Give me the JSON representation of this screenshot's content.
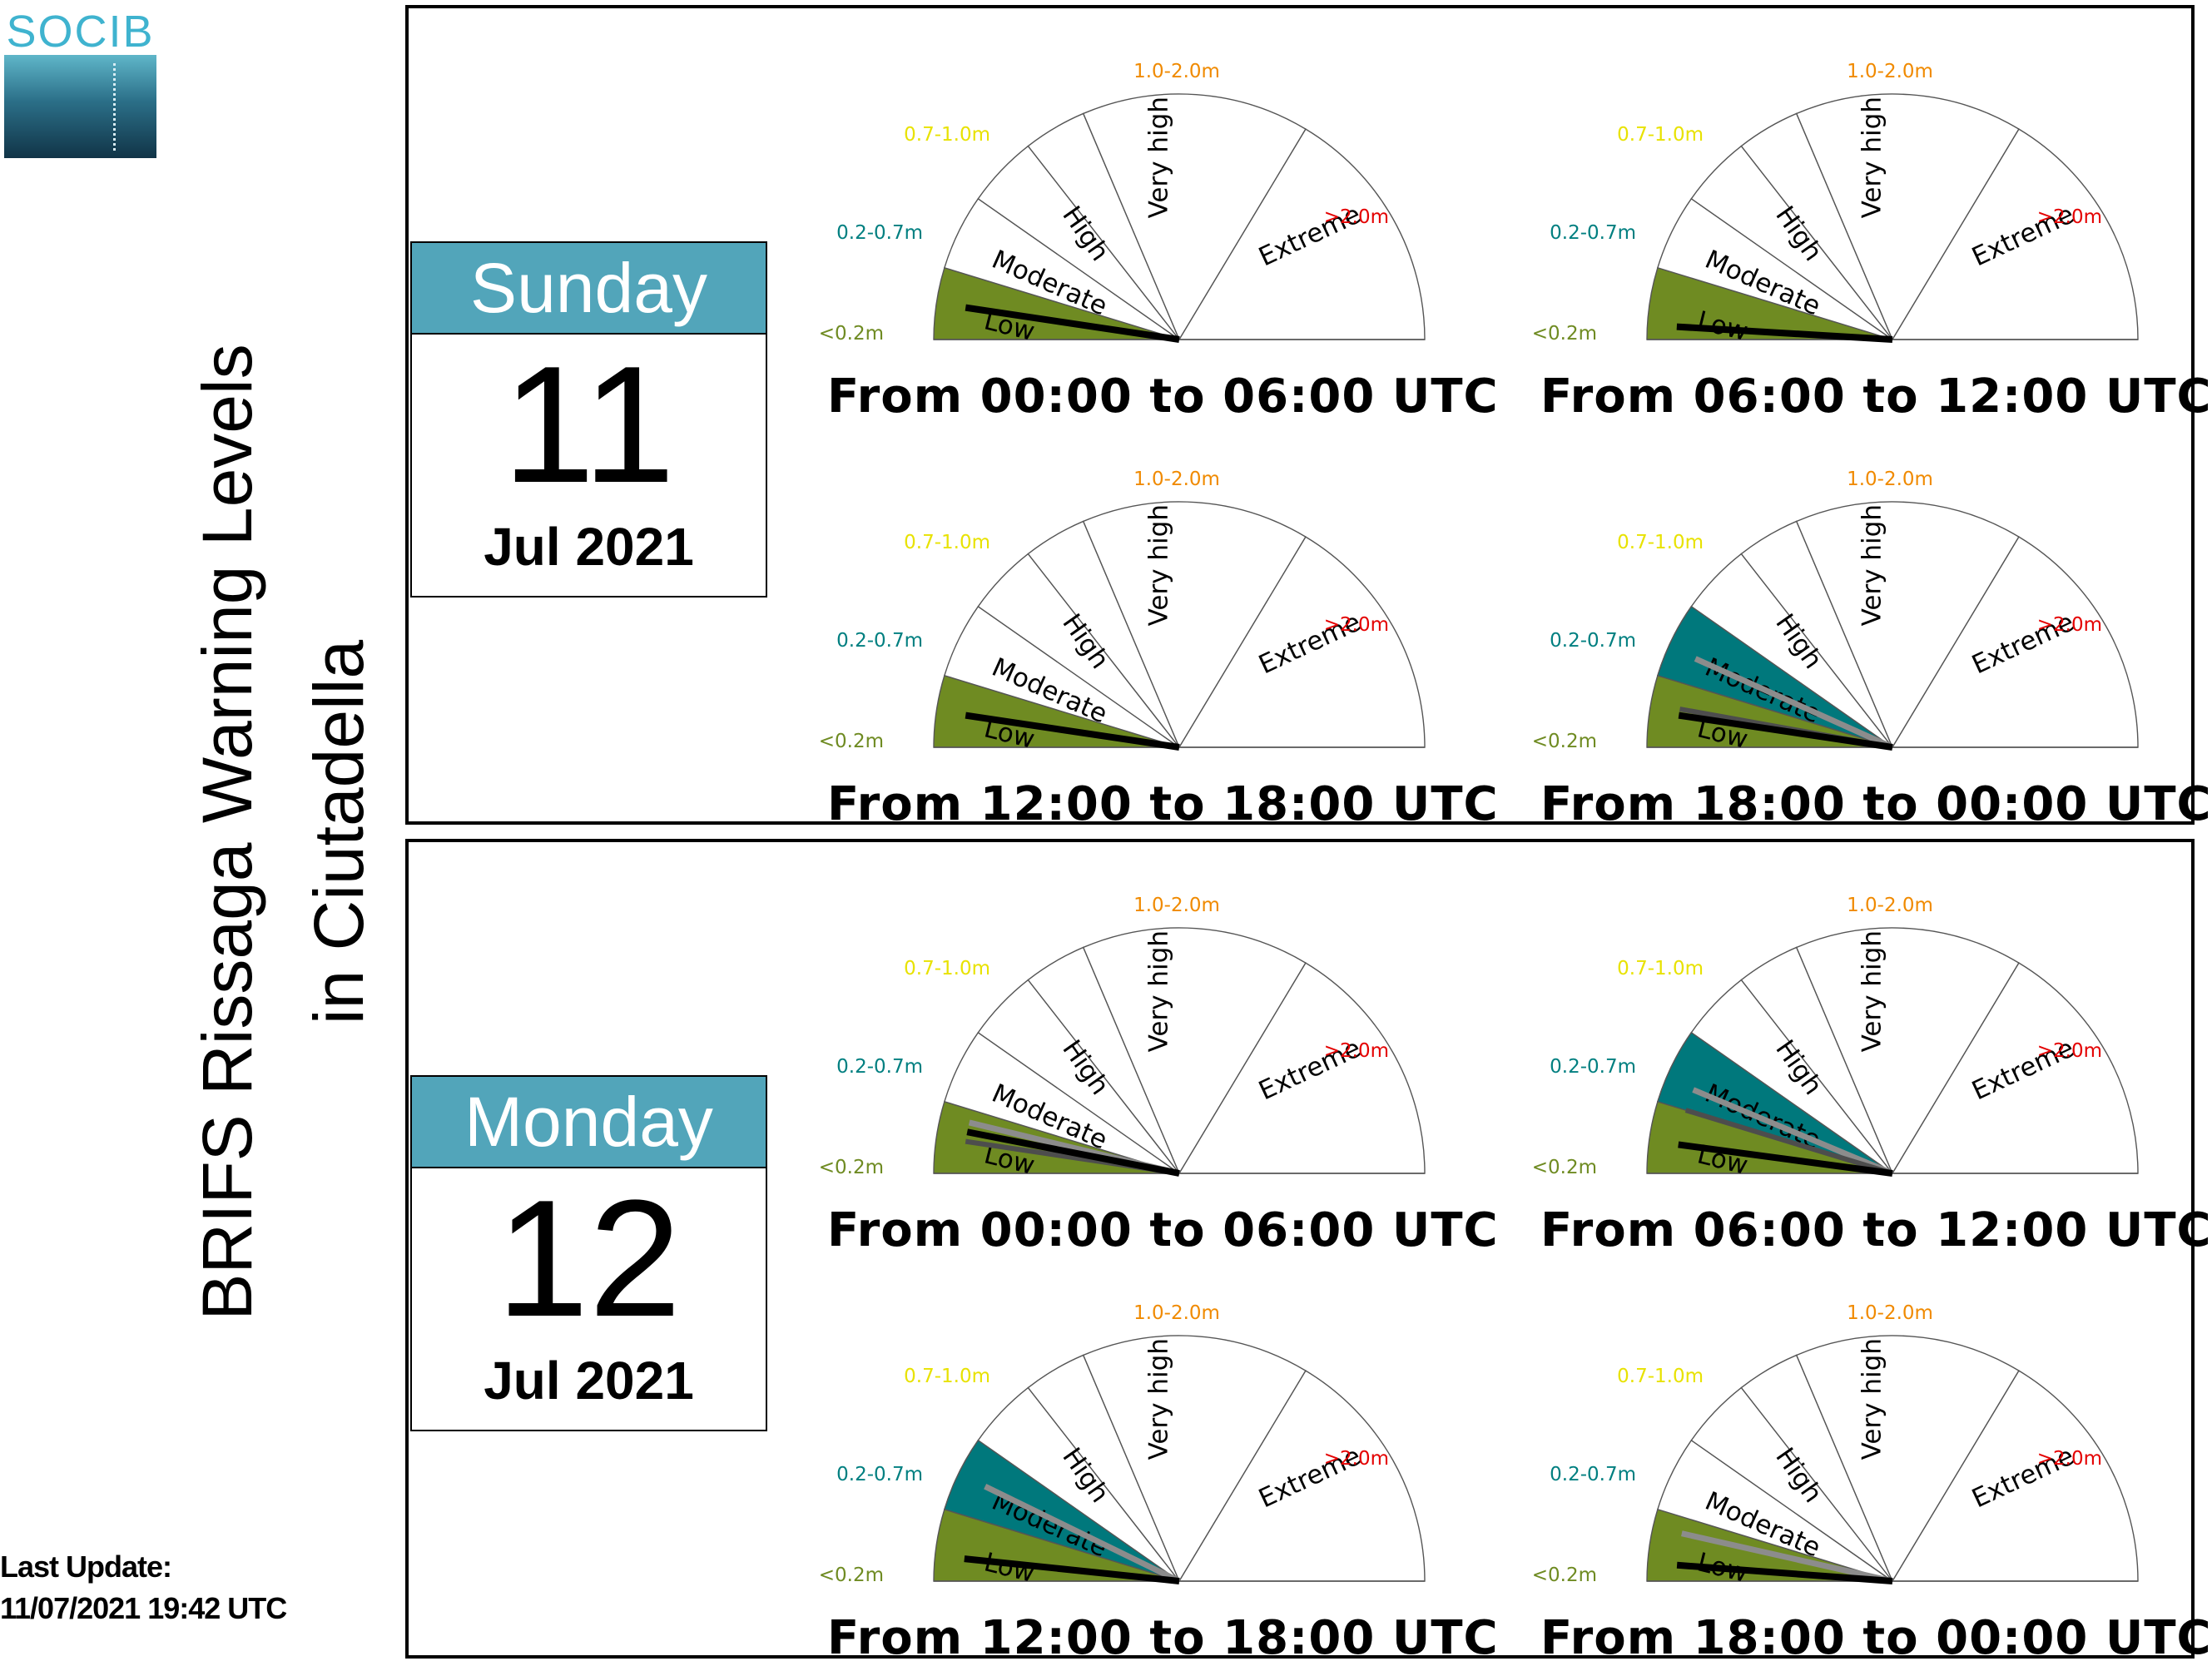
{
  "logo": {
    "text": "SOCIB"
  },
  "title": {
    "line1": "BRIFS Rissaga Warning Levels",
    "line2": "in Ciutadella"
  },
  "last_update": {
    "label": "Last Update:",
    "value": "11/07/2021 19:42 UTC"
  },
  "colors": {
    "low": "#6f8b22",
    "moderate": "#00787c",
    "calendar_header": "#52a5ba",
    "threshold_low": "#6f8b22",
    "threshold_moderate": "#007f80",
    "threshold_high": "#e8e200",
    "threshold_very_high": "#f08a00",
    "threshold_extreme": "#e40000"
  },
  "gauge_labels": {
    "levels": [
      "Low",
      "Moderate",
      "High",
      "Very high",
      "Extreme"
    ],
    "thresholds": [
      "<0.2m",
      "0.2-0.7m",
      "0.7-1.0m",
      "1.0-2.0m",
      ">2.0m"
    ]
  },
  "days": [
    {
      "weekday": "Sunday",
      "day": "11",
      "month_year": "Jul 2021",
      "forecasts": [
        {
          "period": "From 00:00 to 06:00 UTC",
          "level": "Low",
          "needles": [
            {
              "value_m": 0.1,
              "shade": "black"
            }
          ]
        },
        {
          "period": "From 06:00 to 12:00 UTC",
          "level": "Low",
          "needles": [
            {
              "value_m": 0.04,
              "shade": "black"
            }
          ]
        },
        {
          "period": "From 12:00 to 18:00 UTC",
          "level": "Low",
          "needles": [
            {
              "value_m": 0.1,
              "shade": "black"
            }
          ]
        },
        {
          "period": "From 18:00 to 00:00 UTC",
          "level": "Moderate",
          "needles": [
            {
              "value_m": 0.4,
              "shade": "gray"
            },
            {
              "value_m": 0.12,
              "shade": "darkgray"
            },
            {
              "value_m": 0.1,
              "shade": "black"
            }
          ]
        }
      ]
    },
    {
      "weekday": "Monday",
      "day": "12",
      "month_year": "Jul 2021",
      "forecasts": [
        {
          "period": "From 00:00 to 06:00 UTC",
          "level": "Low",
          "needles": [
            {
              "value_m": 0.16,
              "shade": "gray"
            },
            {
              "value_m": 0.1,
              "shade": "darkgray"
            },
            {
              "value_m": 0.13,
              "shade": "black"
            }
          ]
        },
        {
          "period": "From 06:00 to 12:00 UTC",
          "level": "Moderate",
          "needles": [
            {
              "value_m": 0.36,
              "shade": "gray"
            },
            {
              "value_m": 0.2,
              "shade": "darkgray"
            },
            {
              "value_m": 0.09,
              "shade": "black"
            }
          ]
        },
        {
          "period": "From 12:00 to 18:00 UTC",
          "level": "Moderate",
          "needles": [
            {
              "value_m": 0.45,
              "shade": "gray"
            },
            {
              "value_m": 0.07,
              "shade": "black"
            }
          ]
        },
        {
          "period": "From 18:00 to 00:00 UTC",
          "level": "Low",
          "needles": [
            {
              "value_m": 0.15,
              "shade": "gray"
            },
            {
              "value_m": 0.05,
              "shade": "black"
            }
          ]
        }
      ]
    }
  ]
}
